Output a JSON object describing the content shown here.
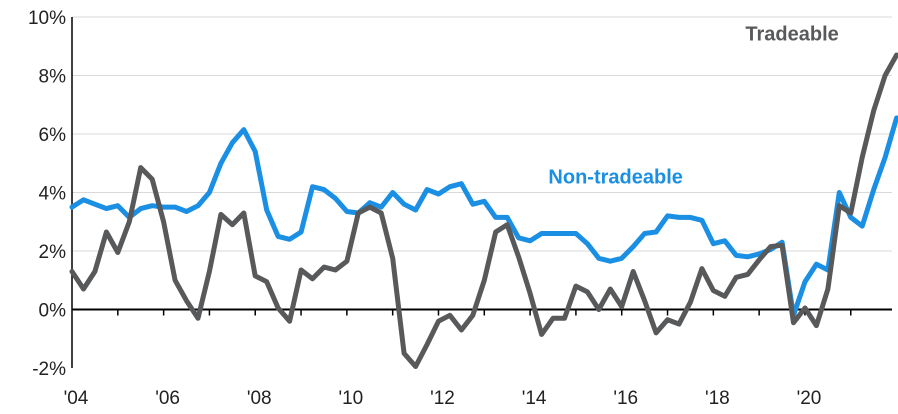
{
  "chart_data": {
    "type": "line",
    "title": "",
    "xlabel": "",
    "ylabel": "",
    "x_start": 2004.0,
    "x_step": 0.25,
    "xlim": [
      2004.0,
      2021.9
    ],
    "ylim": [
      -2,
      10
    ],
    "grid": true,
    "y_ticks": [
      {
        "value": 10,
        "label": "10%"
      },
      {
        "value": 8,
        "label": "8%"
      },
      {
        "value": 6,
        "label": "6%"
      },
      {
        "value": 4,
        "label": "4%"
      },
      {
        "value": 2,
        "label": "2%"
      },
      {
        "value": 0,
        "label": "0%"
      },
      {
        "value": -2,
        "label": "-2%"
      }
    ],
    "x_ticks": [
      {
        "value": 2004,
        "label": "'04"
      },
      {
        "value": 2006,
        "label": "'06"
      },
      {
        "value": 2008,
        "label": "'08"
      },
      {
        "value": 2010,
        "label": "'10"
      },
      {
        "value": 2012,
        "label": "'12"
      },
      {
        "value": 2014,
        "label": "'14"
      },
      {
        "value": 2016,
        "label": "'16"
      },
      {
        "value": 2018,
        "label": "'18"
      },
      {
        "value": 2020,
        "label": "'20"
      }
    ],
    "series": [
      {
        "name": "Non-tradeable",
        "color": "#1a8fe3",
        "label_x": 2014.4,
        "label_y": 4.3,
        "values": [
          3.5,
          3.75,
          3.6,
          3.45,
          3.55,
          3.15,
          3.45,
          3.55,
          3.5,
          3.5,
          3.35,
          3.55,
          4.0,
          5.0,
          5.7,
          6.15,
          5.4,
          3.4,
          2.5,
          2.4,
          2.65,
          4.2,
          4.1,
          3.8,
          3.35,
          3.3,
          3.65,
          3.5,
          4.0,
          3.6,
          3.4,
          4.1,
          3.95,
          4.2,
          4.3,
          3.6,
          3.7,
          3.15,
          3.15,
          2.45,
          2.35,
          2.6,
          2.6,
          2.6,
          2.6,
          2.25,
          1.75,
          1.65,
          1.75,
          2.15,
          2.6,
          2.65,
          3.2,
          3.15,
          3.15,
          3.05,
          2.25,
          2.35,
          1.85,
          1.8,
          1.9,
          2.05,
          2.3,
          -0.2,
          0.95,
          1.55,
          1.35,
          4.0,
          3.15,
          2.85,
          4.1,
          5.2,
          6.55
        ]
      },
      {
        "name": "Tradeable",
        "color": "#58595b",
        "label_x": 2018.7,
        "label_y": 9.2,
        "values": [
          1.3,
          0.7,
          1.3,
          2.65,
          1.95,
          3.0,
          4.85,
          4.45,
          3.0,
          1.0,
          0.3,
          -0.3,
          1.3,
          3.25,
          2.9,
          3.3,
          1.15,
          0.95,
          0.05,
          -0.4,
          1.35,
          1.05,
          1.45,
          1.35,
          1.65,
          3.3,
          3.5,
          3.3,
          1.75,
          -1.5,
          -1.95,
          -1.2,
          -0.4,
          -0.2,
          -0.7,
          -0.2,
          1.0,
          2.65,
          2.9,
          1.8,
          0.55,
          -0.85,
          -0.3,
          -0.3,
          0.8,
          0.6,
          0.0,
          0.7,
          0.1,
          1.3,
          0.3,
          -0.8,
          -0.35,
          -0.5,
          0.25,
          1.4,
          0.65,
          0.45,
          1.1,
          1.2,
          1.7,
          2.15,
          2.2,
          -0.45,
          0.05,
          -0.55,
          0.7,
          3.55,
          3.3,
          5.2,
          6.8,
          8.0,
          8.7
        ]
      }
    ]
  }
}
